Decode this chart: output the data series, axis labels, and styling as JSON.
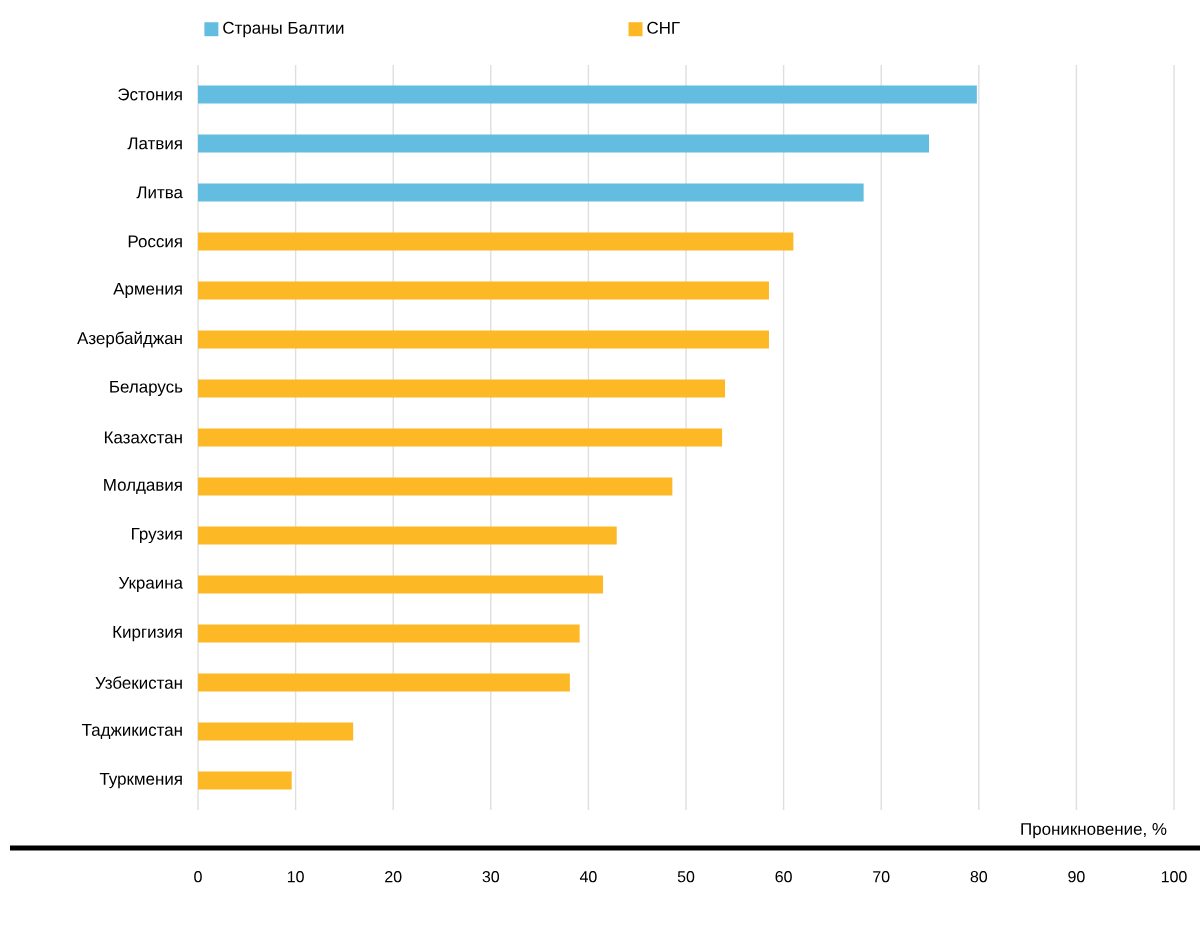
{
  "chart_data": {
    "type": "bar",
    "orientation": "horizontal",
    "xlabel": "Проникновение, %",
    "categories": [
      "Эстония",
      "Латвия",
      "Литва",
      "Россия",
      "Армения",
      "Азербайджан",
      "Беларусь",
      "Казахстан",
      "Молдавия",
      "Грузия",
      "Украина",
      "Киргизия",
      "Узбекистан",
      "Таджикистан",
      "Туркмения"
    ],
    "series": [
      {
        "name": "Страны Балтии",
        "color": "#63bde0",
        "values": [
          79.8,
          74.9,
          68.2,
          null,
          null,
          null,
          null,
          null,
          null,
          null,
          null,
          null,
          null,
          null,
          null
        ]
      },
      {
        "name": "СНГ",
        "color": "#fdb825",
        "values": [
          null,
          null,
          null,
          61.0,
          58.5,
          58.5,
          54.0,
          53.7,
          48.6,
          42.9,
          41.5,
          39.1,
          38.1,
          15.9,
          9.6
        ]
      }
    ],
    "xlim": [
      0,
      100
    ],
    "xticks": [
      0,
      10,
      20,
      30,
      40,
      50,
      60,
      70,
      80,
      90,
      100
    ],
    "grid": "x",
    "legend": "top left"
  }
}
